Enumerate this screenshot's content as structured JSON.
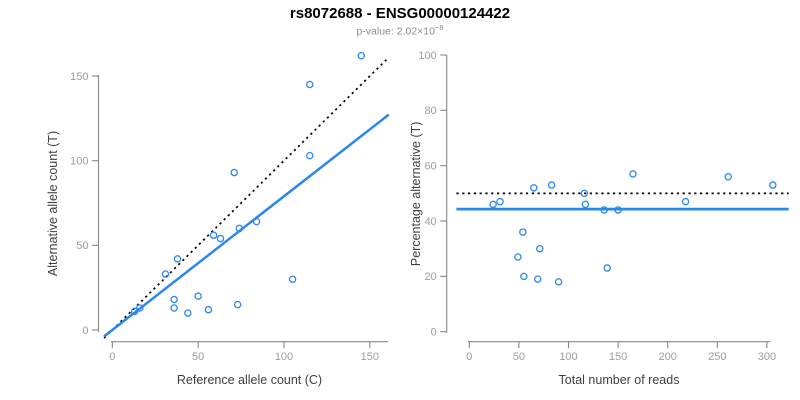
{
  "header": {
    "title": "rs8072688 - ENSG00000124422",
    "subtitle_prefix": "p-value: ",
    "p_value_mantissa": "2.02×10",
    "p_value_exponent": "−8"
  },
  "colors": {
    "title": "#000000",
    "subtitle": "#8b8b8b",
    "axis_line": "#878787",
    "tick_text": "#9c9c9c",
    "axis_title": "#3f3f3f",
    "accent_blue": "#2a87ee",
    "reference_line": "#000000"
  },
  "chart_data": [
    {
      "name": "allele-counts-scatter",
      "type": "scatter",
      "title": "",
      "xlabel": "Reference allele count (C)",
      "ylabel": "Alternative allele count (T)",
      "xlim": [
        0,
        160
      ],
      "ylim": [
        0,
        165
      ],
      "xticks": [
        0,
        50,
        100,
        150
      ],
      "yticks": [
        0,
        50,
        100,
        150
      ],
      "grid": false,
      "point_color": "#2a87ee",
      "points": [
        [
          13,
          11
        ],
        [
          16,
          13
        ],
        [
          31,
          33
        ],
        [
          36,
          13
        ],
        [
          36,
          18
        ],
        [
          38,
          42
        ],
        [
          44,
          10
        ],
        [
          50,
          20
        ],
        [
          56,
          12
        ],
        [
          59,
          56
        ],
        [
          63,
          54
        ],
        [
          71,
          93
        ],
        [
          73,
          15
        ],
        [
          74,
          60
        ],
        [
          84,
          64
        ],
        [
          105,
          30
        ],
        [
          115,
          103
        ],
        [
          115,
          145
        ],
        [
          145,
          162
        ]
      ],
      "lines": [
        {
          "name": "identity-line",
          "style": "dotted",
          "color": "#000000",
          "slope": 1,
          "intercept": 0
        },
        {
          "name": "fit-line",
          "style": "solid",
          "color": "#2a87ee",
          "slope": 0.79,
          "intercept": 0
        }
      ]
    },
    {
      "name": "percentage-alternative-scatter",
      "type": "scatter",
      "title": "",
      "xlabel": "Total number of reads",
      "ylabel": "Percentage alternative (T)",
      "xlim": [
        0,
        310
      ],
      "ylim": [
        0,
        100
      ],
      "xticks": [
        0,
        50,
        100,
        150,
        200,
        250,
        300
      ],
      "yticks": [
        0,
        20,
        40,
        60,
        80,
        100
      ],
      "grid": false,
      "point_color": "#2a87ee",
      "points": [
        [
          24,
          46
        ],
        [
          31,
          47
        ],
        [
          49,
          27
        ],
        [
          54,
          36
        ],
        [
          55,
          20
        ],
        [
          65,
          52
        ],
        [
          69,
          19
        ],
        [
          71,
          30
        ],
        [
          83,
          53
        ],
        [
          90,
          18
        ],
        [
          116,
          50
        ],
        [
          117,
          46
        ],
        [
          136,
          44
        ],
        [
          139,
          23
        ],
        [
          150,
          44
        ],
        [
          165,
          57
        ],
        [
          218,
          47
        ],
        [
          261,
          56
        ],
        [
          306,
          53
        ]
      ],
      "lines": [
        {
          "name": "expected-50pct-line",
          "style": "dotted",
          "color": "#000000",
          "slope": 0,
          "intercept": 50
        },
        {
          "name": "observed-mean-line",
          "style": "solid",
          "color": "#2a87ee",
          "slope": 0,
          "intercept": 44.3
        }
      ]
    }
  ]
}
